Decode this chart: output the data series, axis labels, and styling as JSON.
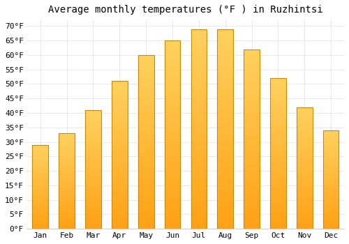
{
  "title": "Average monthly temperatures (°F ) in Ruzhintsi",
  "months": [
    "Jan",
    "Feb",
    "Mar",
    "Apr",
    "May",
    "Jun",
    "Jul",
    "Aug",
    "Sep",
    "Oct",
    "Nov",
    "Dec"
  ],
  "values": [
    29,
    33,
    41,
    51,
    60,
    65,
    69,
    69,
    62,
    52,
    42,
    34
  ],
  "bar_color_top": "#FFD060",
  "bar_color_bottom": "#FFA020",
  "bar_edge_color": "#CC8800",
  "background_color": "#FFFFFF",
  "plot_bg_color": "#FFFFFF",
  "grid_color": "#E8E8E8",
  "ylim": [
    0,
    72
  ],
  "yticks": [
    0,
    5,
    10,
    15,
    20,
    25,
    30,
    35,
    40,
    45,
    50,
    55,
    60,
    65,
    70
  ],
  "ylabel_suffix": "°F",
  "title_fontsize": 10,
  "tick_fontsize": 8
}
